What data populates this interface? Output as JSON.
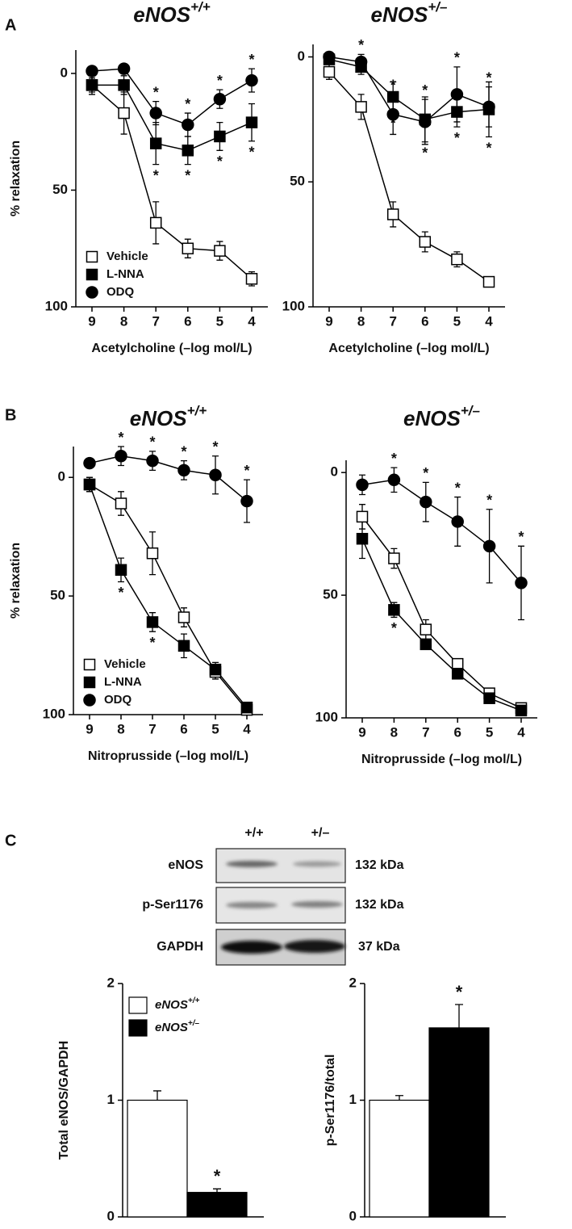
{
  "panel_labels": [
    "A",
    "B",
    "C"
  ],
  "chart_data": [
    {
      "type": "line",
      "title": {
        "main": "eNOS",
        "sup": "+/+"
      },
      "x_label": "Acetylcholine (–log mol/L)",
      "y_label": "% relaxation",
      "categories": [
        "9",
        "8",
        "7",
        "6",
        "5",
        "4"
      ],
      "ylim": [
        -10,
        100
      ],
      "y_inverted": true,
      "yticks": [
        0,
        50,
        100
      ],
      "legend": "lower left",
      "series": [
        {
          "name": "Vehicle",
          "color": "#ffffff",
          "marker": "square",
          "values": [
            5,
            17,
            64,
            75,
            76,
            88
          ],
          "errors": [
            4,
            9,
            9,
            4,
            4,
            3
          ]
        },
        {
          "name": "L-NNA",
          "color": "#000000",
          "marker": "square",
          "values": [
            5,
            5,
            30,
            33,
            27,
            21
          ],
          "errors": [
            3,
            4,
            9,
            6,
            6,
            8
          ],
          "stars": [
            null,
            null,
            "*",
            "*",
            "*",
            "*"
          ]
        },
        {
          "name": "ODQ",
          "color": "#000000",
          "marker": "circle",
          "values": [
            -1,
            -2,
            17,
            22,
            11,
            3
          ],
          "errors": [
            1,
            1,
            5,
            5,
            4,
            5
          ],
          "stars": [
            null,
            null,
            "*",
            "*",
            "*",
            "*"
          ]
        }
      ]
    },
    {
      "type": "line",
      "title": {
        "main": "eNOS",
        "sup": "+/–"
      },
      "x_label": "Acetylcholine (–log mol/L)",
      "categories": [
        "9",
        "8",
        "7",
        "6",
        "5",
        "4"
      ],
      "ylim": [
        -5,
        100
      ],
      "y_inverted": true,
      "yticks": [
        0,
        50,
        100
      ],
      "legend": null,
      "series": [
        {
          "name": "Vehicle",
          "color": "#ffffff",
          "marker": "square",
          "values": [
            6,
            20,
            63,
            74,
            81,
            90
          ],
          "errors": [
            3,
            5,
            5,
            4,
            3,
            2
          ]
        },
        {
          "name": "L-NNA",
          "color": "#000000",
          "marker": "square",
          "values": [
            1,
            4,
            16,
            25,
            22,
            21
          ],
          "errors": [
            2,
            3,
            6,
            9,
            6,
            11
          ],
          "stars": [
            null,
            null,
            "*",
            "*",
            "*",
            "*"
          ]
        },
        {
          "name": "ODQ",
          "color": "#000000",
          "marker": "circle",
          "values": [
            0,
            2,
            23,
            26,
            15,
            20
          ],
          "errors": [
            2,
            3,
            8,
            9,
            11,
            8
          ],
          "stars": [
            null,
            "*",
            "*",
            "*",
            "*",
            "*"
          ]
        }
      ]
    },
    {
      "type": "line",
      "title": {
        "main": "eNOS",
        "sup": "+/+"
      },
      "x_label": "Nitroprusside (–log mol/L)",
      "y_label": "% relaxation",
      "categories": [
        "9",
        "8",
        "7",
        "6",
        "5",
        "4"
      ],
      "ylim": [
        -13,
        100
      ],
      "y_inverted": true,
      "yticks": [
        0,
        50,
        100
      ],
      "legend": "lower left",
      "series": [
        {
          "name": "Vehicle",
          "color": "#ffffff",
          "marker": "square",
          "values": [
            3,
            11,
            32,
            59,
            82,
            98
          ],
          "errors": [
            3,
            5,
            9,
            4,
            3,
            2
          ]
        },
        {
          "name": "L-NNA",
          "color": "#000000",
          "marker": "square",
          "values": [
            3,
            39,
            61,
            71,
            81,
            97
          ],
          "errors": [
            3,
            5,
            4,
            5,
            3,
            2
          ],
          "stars": [
            null,
            "*",
            "*",
            null,
            null,
            null
          ]
        },
        {
          "name": "ODQ",
          "color": "#000000",
          "marker": "circle",
          "values": [
            -6,
            -9,
            -7,
            -3,
            -1,
            10
          ],
          "errors": [
            1,
            4,
            4,
            4,
            8,
            9
          ],
          "stars": [
            null,
            "*",
            "*",
            "*",
            "*",
            "*"
          ]
        }
      ]
    },
    {
      "type": "line",
      "title": {
        "main": "eNOS",
        "sup": "+/–"
      },
      "x_label": "Nitroprusside (–log mol/L)",
      "categories": [
        "9",
        "8",
        "7",
        "6",
        "5",
        "4"
      ],
      "ylim": [
        -5,
        100
      ],
      "y_inverted": true,
      "yticks": [
        0,
        50,
        100
      ],
      "legend": null,
      "series": [
        {
          "name": "Vehicle",
          "color": "#ffffff",
          "marker": "square",
          "values": [
            18,
            35,
            64,
            78,
            90,
            96
          ],
          "errors": [
            5,
            4,
            4,
            2,
            2,
            1
          ]
        },
        {
          "name": "L-NNA",
          "color": "#000000",
          "marker": "square",
          "values": [
            27,
            56,
            70,
            82,
            92,
            97
          ],
          "errors": [
            8,
            3,
            2,
            2,
            2,
            1
          ],
          "stars": [
            null,
            "*",
            null,
            null,
            null,
            null
          ]
        },
        {
          "name": "ODQ",
          "color": "#000000",
          "marker": "circle",
          "values": [
            5,
            3,
            12,
            20,
            30,
            45
          ],
          "errors": [
            4,
            5,
            8,
            10,
            15,
            15
          ],
          "stars": [
            null,
            "*",
            "*",
            "*",
            "*",
            "*"
          ]
        }
      ]
    },
    {
      "type": "bar",
      "y_label": "Total eNOS/GAPDH",
      "ylim": [
        0,
        2
      ],
      "yticks": [
        0,
        1,
        2
      ],
      "legend": "upper left",
      "series": [
        {
          "name": {
            "main": "eNOS",
            "sup": "+/+"
          },
          "color": "#ffffff",
          "values": [
            1.0
          ],
          "errors": [
            0.08
          ]
        },
        {
          "name": {
            "main": "eNOS",
            "sup": "+/–"
          },
          "color": "#000000",
          "values": [
            0.21
          ],
          "errors": [
            0.03
          ],
          "stars": [
            "*"
          ]
        }
      ]
    },
    {
      "type": "bar",
      "y_label": "p-Ser1176/total",
      "ylim": [
        0,
        2
      ],
      "yticks": [
        0,
        1,
        2
      ],
      "legend": null,
      "series": [
        {
          "name": {
            "main": "eNOS",
            "sup": "+/+"
          },
          "color": "#ffffff",
          "values": [
            1.0
          ],
          "errors": [
            0.04
          ]
        },
        {
          "name": {
            "main": "eNOS",
            "sup": "+/–"
          },
          "color": "#000000",
          "values": [
            1.62
          ],
          "errors": [
            0.2
          ],
          "stars": [
            "*"
          ]
        }
      ]
    }
  ],
  "blot": {
    "lanes": [
      "+/+",
      "+/–"
    ],
    "rows": [
      {
        "label": "eNOS",
        "size": "132 kDa"
      },
      {
        "label": "p-Ser1176",
        "size": "132 kDa"
      },
      {
        "label": "GAPDH",
        "size": "37 kDa"
      }
    ]
  }
}
